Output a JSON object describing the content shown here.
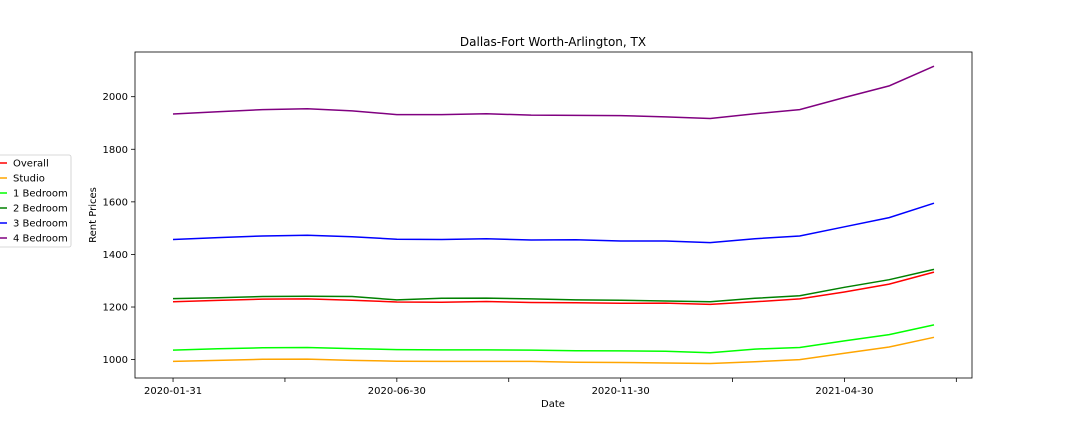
{
  "chart_data": {
    "type": "line",
    "title": "Dallas-Fort Worth-Arlington, TX",
    "xlabel": "Date",
    "ylabel": "Rent Prices",
    "x": [
      "2020-01-31",
      "2020-02-29",
      "2020-03-31",
      "2020-04-30",
      "2020-05-31",
      "2020-06-30",
      "2020-07-31",
      "2020-08-31",
      "2020-09-30",
      "2020-10-31",
      "2020-11-30",
      "2020-12-31",
      "2021-01-31",
      "2021-02-28",
      "2021-03-31",
      "2021-04-30",
      "2021-05-31",
      "2021-06-30"
    ],
    "xtick_labels": [
      "2020-01-31",
      "",
      "2020-06-30",
      "",
      "2020-11-30",
      "",
      "2021-04-30",
      ""
    ],
    "xtick_positions": [
      0,
      2.5,
      5,
      7.5,
      10,
      12.5,
      15,
      17.5
    ],
    "xlim": [
      -0.85,
      17.85
    ],
    "ylim": [
      930,
      2170
    ],
    "yticks": [
      1000,
      1200,
      1400,
      1600,
      1800,
      2000
    ],
    "grid": false,
    "legend_position": "left outside",
    "series": [
      {
        "name": "Overall",
        "color": "#ff0000",
        "values": [
          1220,
          1225,
          1230,
          1231,
          1226,
          1219,
          1218,
          1221,
          1217,
          1216,
          1214,
          1215,
          1210,
          1220,
          1231,
          1257,
          1287,
          1333
        ]
      },
      {
        "name": "Studio",
        "color": "#ffa500",
        "values": [
          993,
          997,
          1001,
          1002,
          997,
          994,
          993,
          993,
          993,
          990,
          989,
          987,
          985,
          992,
          1000,
          1024,
          1048,
          1085
        ]
      },
      {
        "name": "1 Bedroom",
        "color": "#00ff00",
        "values": [
          1036,
          1041,
          1045,
          1046,
          1042,
          1038,
          1037,
          1037,
          1036,
          1034,
          1033,
          1032,
          1026,
          1040,
          1046,
          1071,
          1095,
          1132
        ]
      },
      {
        "name": "2 Bedroom",
        "color": "#008000",
        "values": [
          1232,
          1235,
          1240,
          1241,
          1240,
          1227,
          1233,
          1234,
          1231,
          1227,
          1226,
          1223,
          1220,
          1233,
          1243,
          1275,
          1304,
          1343
        ]
      },
      {
        "name": "3 Bedroom",
        "color": "#0000ff",
        "values": [
          1457,
          1464,
          1470,
          1473,
          1467,
          1458,
          1457,
          1460,
          1455,
          1456,
          1451,
          1451,
          1445,
          1460,
          1470,
          1505,
          1540,
          1595
        ]
      },
      {
        "name": "4 Bedroom",
        "color": "#800080",
        "values": [
          1934,
          1943,
          1951,
          1954,
          1946,
          1932,
          1932,
          1935,
          1930,
          1929,
          1928,
          1923,
          1917,
          1935,
          1951,
          1997,
          2041,
          2116
        ]
      }
    ]
  }
}
